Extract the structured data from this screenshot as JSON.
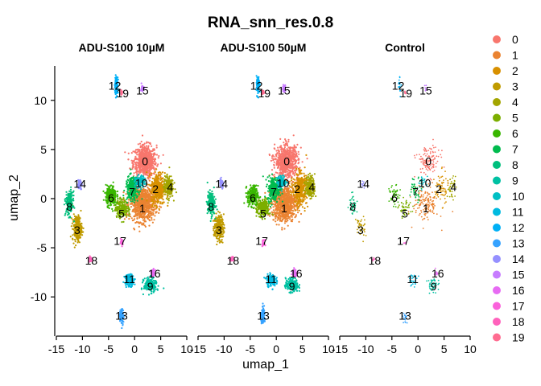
{
  "chart_data": {
    "type": "scatter",
    "title": "RNA_snn_res.0.8",
    "xlabel": "umap_1",
    "ylabel": "umap_2",
    "xlim": [
      -15,
      10
    ],
    "ylim": [
      -13.5,
      13.5
    ],
    "x_ticks": [
      "-15",
      "-10",
      "-5",
      "0",
      "5",
      "10"
    ],
    "y_ticks": [
      "-10",
      "-5",
      "0",
      "5",
      "10"
    ],
    "facets": [
      "ADU-S100 10µM",
      "ADU-S100 50µM",
      "Control"
    ],
    "legend_position": "right",
    "legend_labels": [
      "0",
      "1",
      "2",
      "3",
      "4",
      "5",
      "6",
      "7",
      "8",
      "9",
      "10",
      "11",
      "12",
      "13",
      "14",
      "15",
      "16",
      "17",
      "18",
      "19"
    ],
    "legend_colors": [
      "#F8766D",
      "#EA8331",
      "#D89000",
      "#C09B00",
      "#A3A500",
      "#7CAE00",
      "#39B600",
      "#00BB4E",
      "#00BF7D",
      "#00C1A3",
      "#00BFC4",
      "#00BAE0",
      "#00B0F6",
      "#35A2FF",
      "#9590FF",
      "#C77CFF",
      "#E76BF3",
      "#FA62DB",
      "#FF62BC",
      "#FF6C91"
    ],
    "clusters": [
      {
        "id": "0",
        "center": [
          2.0,
          3.8
        ],
        "label_pos": [
          2.0,
          3.8
        ]
      },
      {
        "id": "1",
        "center": [
          1.5,
          -0.5
        ],
        "label_pos": [
          1.5,
          -1.0
        ]
      },
      {
        "id": "2",
        "center": [
          4.5,
          1.0
        ],
        "label_pos": [
          4.0,
          1.0
        ]
      },
      {
        "id": "3",
        "center": [
          -11.0,
          -3.0
        ],
        "label_pos": [
          -11.0,
          -3.2
        ]
      },
      {
        "id": "4",
        "center": [
          6.5,
          1.2
        ],
        "label_pos": [
          6.8,
          1.2
        ]
      },
      {
        "id": "5",
        "center": [
          -2.5,
          -1.0
        ],
        "label_pos": [
          -2.5,
          -1.5
        ]
      },
      {
        "id": "6",
        "center": [
          -4.5,
          0.3
        ],
        "label_pos": [
          -4.5,
          0.1
        ]
      },
      {
        "id": "7",
        "center": [
          -0.5,
          1.0
        ],
        "label_pos": [
          -0.5,
          0.7
        ]
      },
      {
        "id": "8",
        "center": [
          -12.5,
          -0.5
        ],
        "label_pos": [
          -12.5,
          -0.8
        ]
      },
      {
        "id": "9",
        "center": [
          3.0,
          -8.8
        ],
        "label_pos": [
          3.0,
          -8.9
        ]
      },
      {
        "id": "10",
        "center": [
          1.0,
          1.7
        ],
        "label_pos": [
          1.3,
          1.6
        ]
      },
      {
        "id": "11",
        "center": [
          -1.0,
          -8.3
        ],
        "label_pos": [
          -1.0,
          -8.2
        ]
      },
      {
        "id": "12",
        "center": [
          -3.5,
          11.5
        ],
        "label_pos": [
          -3.8,
          11.5
        ]
      },
      {
        "id": "13",
        "center": [
          -2.5,
          -12.0
        ],
        "label_pos": [
          -2.5,
          -11.9
        ]
      },
      {
        "id": "14",
        "center": [
          -10.5,
          1.5
        ],
        "label_pos": [
          -10.5,
          1.5
        ]
      },
      {
        "id": "15",
        "center": [
          1.5,
          11.2
        ],
        "label_pos": [
          1.5,
          11.0
        ]
      },
      {
        "id": "16",
        "center": [
          3.5,
          -7.5
        ],
        "label_pos": [
          3.8,
          -7.6
        ]
      },
      {
        "id": "17",
        "center": [
          -2.5,
          -4.5
        ],
        "label_pos": [
          -2.8,
          -4.3
        ]
      },
      {
        "id": "18",
        "center": [
          -8.5,
          -6.2
        ],
        "label_pos": [
          -8.3,
          -6.3
        ]
      },
      {
        "id": "19",
        "center": [
          -2.5,
          10.8
        ],
        "label_pos": [
          -2.3,
          10.7
        ]
      }
    ]
  }
}
